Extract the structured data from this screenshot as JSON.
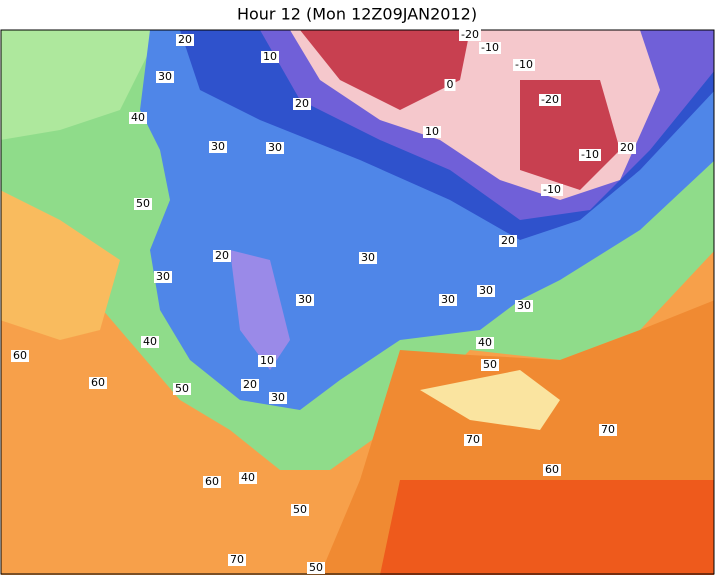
{
  "title": "Hour 12 (Mon 12Z09JAN2012)",
  "contour_labels": [
    "20",
    "10",
    "30",
    "40",
    "20",
    "10",
    "30",
    "30",
    "50",
    "20",
    "30",
    "30",
    "30",
    "30",
    "30",
    "20",
    "30",
    "40",
    "10",
    "40",
    "50",
    "20",
    "30",
    "50",
    "60",
    "60",
    "70",
    "70",
    "60",
    "40",
    "60",
    "50",
    "70",
    "50",
    "-10",
    "-10",
    "-20",
    "0",
    "-10",
    "20",
    "-10",
    "-20"
  ]
}
